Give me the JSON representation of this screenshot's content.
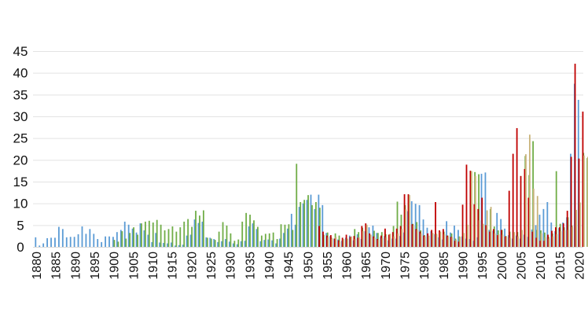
{
  "chart_data": {
    "type": "bar",
    "title": "",
    "xlabel": "",
    "ylabel": "",
    "ylim": [
      0,
      45
    ],
    "yticks": [
      "0",
      "5",
      "10",
      "15",
      "20",
      "25",
      "30",
      "35",
      "40",
      "45"
    ],
    "xticks": [
      "1880",
      "1885",
      "1890",
      "1895",
      "1900",
      "1905",
      "1910",
      "1915",
      "1920",
      "1925",
      "1930",
      "1935",
      "1940",
      "1945",
      "1950",
      "1955",
      "1960",
      "1965",
      "1970",
      "1975",
      "1980",
      "1985",
      "1990",
      "1995",
      "2000",
      "2005",
      "2010",
      "2015",
      "2020"
    ],
    "grid": true,
    "legend": "none",
    "x_start": 1880,
    "x_end": 2020,
    "series": [
      {
        "name": "blue",
        "color": "#5b9bd5",
        "start": 1880,
        "values": [
          2.2,
          0.3,
          0.8,
          2,
          2.1,
          2.1,
          4.6,
          4.1,
          2.2,
          2.3,
          2.3,
          2.9,
          4.7,
          3,
          4.1,
          3,
          1.8,
          1.1,
          2.4,
          2.4,
          2.3,
          3.4,
          3.9,
          5.8,
          5.1,
          4.2,
          3.3,
          5.4,
          3.8,
          2.8,
          1.1,
          3.2,
          1,
          0.9,
          0.8,
          1,
          0.3,
          0.4,
          0.5,
          2.6,
          2.8,
          6.3,
          5.5,
          5.8,
          2.2,
          2.1,
          1.8,
          1.1,
          1.3,
          1.8,
          1.2,
          0.8,
          0.6,
          1.3,
          1.4,
          4.7,
          5.4,
          4.1,
          1.3,
          1.6,
          1.7,
          1.5,
          0.8,
          1.9,
          3.2,
          4.2,
          7.6,
          5.1,
          9.2,
          10,
          10.8,
          12,
          8.7,
          12,
          9.6,
          3.2,
          2.5,
          1.9,
          1.7,
          1.4,
          2.1,
          2.6,
          1.5,
          2.9,
          1.8,
          3.6,
          4.5,
          4.9,
          3.2,
          2.3,
          2.5,
          1.5,
          1.9,
          1.9,
          2.5,
          3.3,
          8.2,
          10.5,
          9.9,
          9.6,
          6.3,
          4.4,
          3.6,
          2.9,
          2.2,
          1.7,
          5.9,
          3.3,
          4.9,
          3.9,
          2.4,
          1.9,
          1.8,
          1.4,
          2.2,
          16.8,
          17.1,
          3.9,
          3.7,
          7.8,
          6.4,
          4.2,
          2.7,
          1.9,
          2.6,
          1.9,
          2.8,
          2.3,
          4,
          5,
          7.4,
          8.7,
          10.3,
          5.6,
          3.6,
          4.3,
          5.6,
          6.8,
          21.4,
          37.5,
          33.8
        ]
      },
      {
        "name": "green",
        "color": "#70ad47",
        "start": 1900,
        "values": [
          1.6,
          1.2,
          3.6,
          1.9,
          3.2,
          4.5,
          2.8,
          5.4,
          5.8,
          6,
          5.6,
          6.2,
          5.1,
          3.8,
          4.1,
          4.7,
          3.5,
          4.5,
          5.8,
          6.4,
          4.6,
          8.3,
          7.2,
          8.4,
          2.1,
          1.9,
          1.6,
          3.5,
          5.7,
          4.9,
          3.1,
          1.4,
          1.7,
          5.8,
          7.8,
          7.4,
          6.1,
          4.6,
          2.6,
          3,
          3.1,
          3.3,
          1.8,
          5.2,
          5.1,
          5.2,
          3.9,
          19.1,
          10.3,
          10.8,
          11.9,
          9.6,
          10.3,
          9,
          2.8,
          3.3,
          2.1,
          3.1,
          2.6,
          1.4,
          1.9,
          2.2,
          4.1,
          3.4,
          4.4,
          3.2,
          2.1,
          3.7,
          3.2,
          3.4,
          2.9,
          2.9,
          4.8,
          10.4,
          7.4,
          9.6,
          11.9,
          5.3,
          5.7,
          3.8,
          2.7,
          2.1,
          3.1,
          3,
          2.6,
          3.5,
          2.6,
          3.1,
          1.9,
          2.4,
          2.1,
          3.2,
          5.2,
          17.2,
          16.7,
          5.1,
          4.5,
          8.7,
          4.7,
          3.8,
          3.9,
          2.5,
          3.5,
          2.3,
          3.4,
          2.6,
          20.9,
          16.5,
          24.3,
          3.9,
          3.8,
          3.3,
          2.3,
          3.1,
          17.4,
          5.3,
          4.5,
          6.8,
          4.9,
          6.3,
          9.8,
          21.6,
          20.4,
          31.1
        ]
      },
      {
        "name": "red",
        "color": "#c00000",
        "start": 1953,
        "values": [
          4.8,
          3.5,
          2.6,
          2.7,
          1.9,
          1.5,
          2.1,
          2.8,
          2.3,
          2.5,
          2.1,
          4.8,
          5.4,
          3.1,
          2.4,
          1.8,
          2.6,
          4.2,
          2.8,
          3.4,
          4.2,
          4.8,
          12.1,
          12.1,
          5.2,
          4.1,
          3.5,
          2.6,
          3.1,
          3.9,
          10.3,
          3.8,
          4.1,
          2.6,
          2.3,
          1.4,
          1.2,
          9.7,
          18.9,
          17.5,
          9.8,
          8.7,
          11.3,
          5,
          3.5,
          4.1,
          2.7,
          3.9,
          2.4,
          12.9,
          21.4,
          27.3,
          16.3,
          17.9,
          11.3,
          3.5,
          2.1,
          1.4,
          1.4,
          2.8,
          3.7,
          4.5,
          4.5,
          5.4,
          8.3,
          20.7,
          42.1,
          20.3,
          31.1
        ]
      },
      {
        "name": "tan",
        "color": "#c9b37a",
        "start": 1955,
        "values": [
          2.2,
          1.9,
          2.3,
          1.2,
          1.8,
          1.9,
          2.4,
          1.8,
          2.2,
          3.6,
          5.1,
          2.8,
          2.1,
          1.6,
          2,
          2.2,
          3,
          2.4,
          3.1,
          4.1,
          8.6,
          11.9,
          4.9,
          3.9,
          3.1,
          2.4,
          2.6,
          3.2,
          2.9,
          3.5,
          2.9,
          2.3,
          2.2,
          1.6,
          2.3,
          3.2,
          5.1,
          17.4,
          16.3,
          6.1,
          5.3,
          8.4,
          9.2,
          3.1,
          2.9,
          2.8,
          2.3,
          2.1,
          3.4,
          2.4,
          3.9,
          21.3,
          25.8,
          13.4,
          11.7,
          3.1,
          2.2,
          1.9,
          2.4,
          2.9,
          3.6,
          3.8,
          3.9,
          4.6,
          8.5,
          10.2,
          21,
          20.7,
          22.2
        ]
      }
    ]
  }
}
